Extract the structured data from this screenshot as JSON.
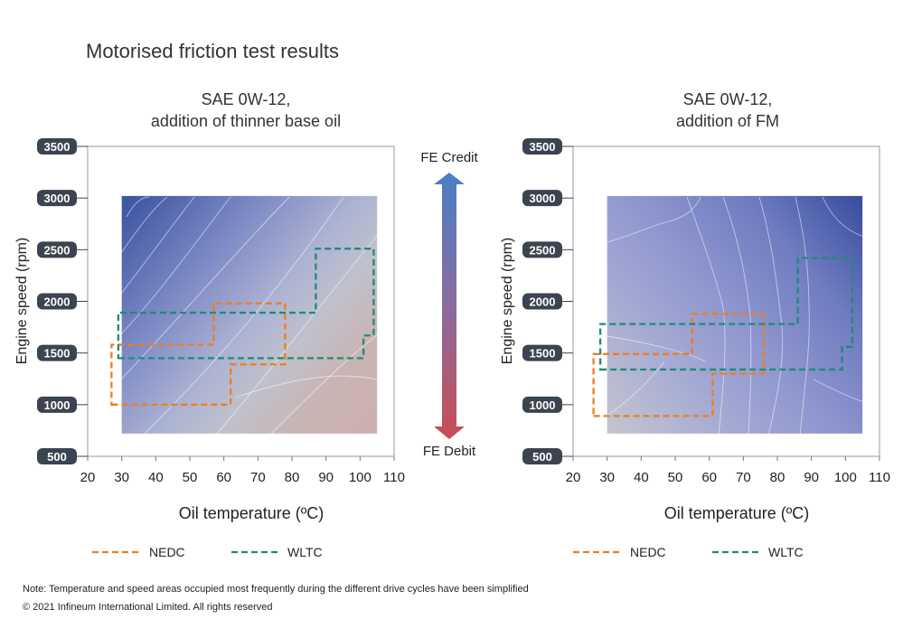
{
  "title": "Motorised friction test results",
  "note": "Note: Temperature and speed areas occupied most frequently during the different drive cycles have been simplified",
  "copyright": "© 2021   Infineum International Limited. All rights reserved",
  "scale": {
    "credit_label": "FE Credit",
    "debit_label": "FE Debit",
    "credit_color": "#4a7fc4",
    "debit_color": "#c94d54"
  },
  "legend": {
    "nedc_label": "NEDC",
    "wltc_label": "WLTC",
    "nedc_color": "#ee7d22",
    "wltc_color": "#1f8a7c"
  },
  "chart_data": [
    {
      "type": "heatmap",
      "title_line1": "SAE 0W-12,",
      "title_line2": "addition of thinner base oil",
      "xlabel": "Oil temperature (ºC)",
      "ylabel": "Engine speed (rpm)",
      "xlim": [
        20,
        110
      ],
      "ylim": [
        500,
        3500
      ],
      "x_ticks": [
        20,
        30,
        40,
        50,
        60,
        70,
        80,
        90,
        100,
        110
      ],
      "y_ticks": [
        500,
        1000,
        1500,
        2000,
        2500,
        3000,
        3500
      ],
      "data_region": {
        "x": [
          30,
          105
        ],
        "y": [
          720,
          3020
        ]
      },
      "gradient": "credit at low temperature / high speed, debit at high temperature / low speed",
      "series": [
        {
          "name": "NEDC",
          "points": [
            [
              27,
              1000
            ],
            [
              62,
              1000
            ],
            [
              62,
              1390
            ],
            [
              78,
              1390
            ],
            [
              78,
              1980
            ],
            [
              57,
              1980
            ],
            [
              57,
              1580
            ],
            [
              27,
              1580
            ]
          ]
        },
        {
          "name": "WLTC",
          "points": [
            [
              29,
              1450
            ],
            [
              101,
              1450
            ],
            [
              101,
              1670
            ],
            [
              104,
              1670
            ],
            [
              104,
              2510
            ],
            [
              87,
              2510
            ],
            [
              87,
              1890
            ],
            [
              29,
              1890
            ]
          ]
        }
      ]
    },
    {
      "type": "heatmap",
      "title_line1": "SAE 0W-12,",
      "title_line2": "addition of FM",
      "xlabel": "Oil temperature (ºC)",
      "ylabel": "Engine speed (rpm)",
      "xlim": [
        20,
        110
      ],
      "ylim": [
        500,
        3500
      ],
      "x_ticks": [
        20,
        30,
        40,
        50,
        60,
        70,
        80,
        90,
        100,
        110
      ],
      "y_ticks": [
        500,
        1000,
        1500,
        2000,
        2500,
        3000,
        3500
      ],
      "data_region": {
        "x": [
          30,
          105
        ],
        "y": [
          720,
          3020
        ]
      },
      "gradient": "debit/neutral at low temperature / low speed, strongest credit at high temperature / high speed",
      "series": [
        {
          "name": "NEDC",
          "points": [
            [
              26,
              890
            ],
            [
              61,
              890
            ],
            [
              61,
              1300
            ],
            [
              76,
              1300
            ],
            [
              76,
              1880
            ],
            [
              55,
              1880
            ],
            [
              55,
              1490
            ],
            [
              26,
              1490
            ]
          ]
        },
        {
          "name": "WLTC",
          "points": [
            [
              28,
              1340
            ],
            [
              99,
              1340
            ],
            [
              99,
              1560
            ],
            [
              102,
              1560
            ],
            [
              102,
              2420
            ],
            [
              86,
              2420
            ],
            [
              86,
              1780
            ],
            [
              28,
              1780
            ]
          ]
        }
      ]
    }
  ]
}
